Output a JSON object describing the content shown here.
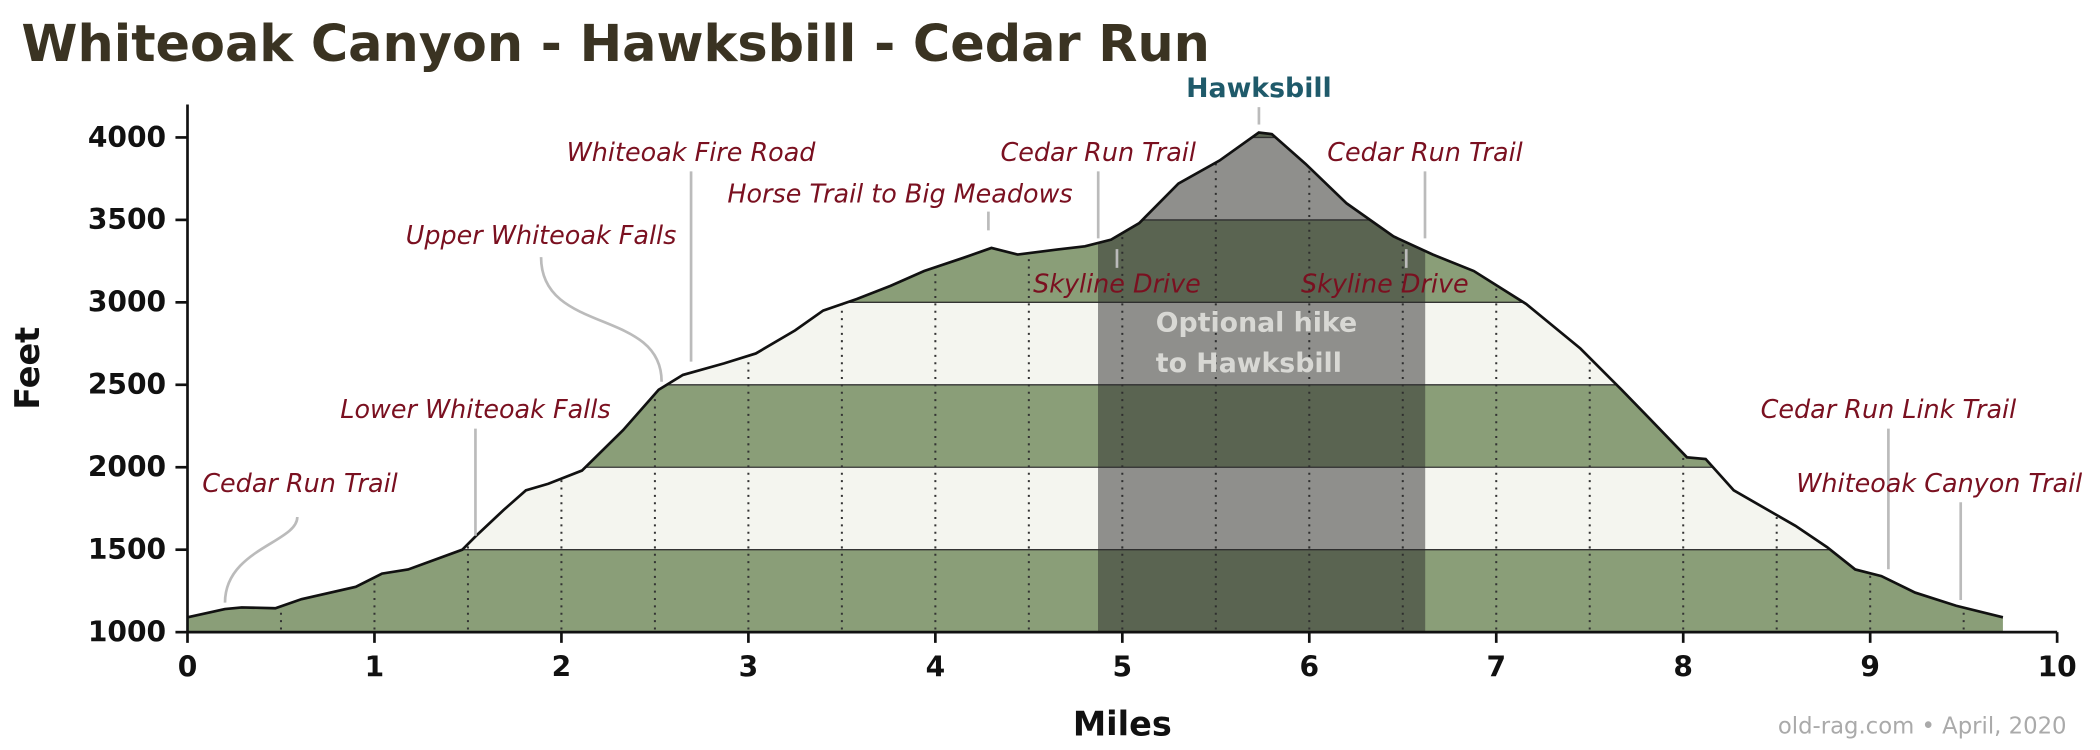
{
  "chart_data": {
    "type": "area",
    "title": "Whiteoak Canyon - Hawksbill - Cedar Run",
    "x_label": "Miles",
    "y_label": "Feet",
    "source": "old-rag.com • April, 2020",
    "xlim": [
      0,
      10
    ],
    "ylim": [
      1000,
      4200
    ],
    "xticks": [
      0,
      1,
      2,
      3,
      4,
      5,
      6,
      7,
      8,
      9,
      10
    ],
    "yticks": [
      1000,
      1500,
      2000,
      2500,
      3000,
      3500,
      4000
    ],
    "band_colors": [
      "#8a9e78",
      "#f4f5ef"
    ],
    "x": [
      0,
      0.2,
      0.29,
      0.47,
      0.61,
      0.9,
      1.04,
      1.18,
      1.47,
      1.54,
      1.69,
      1.81,
      1.93,
      2.11,
      2.33,
      2.52,
      2.65,
      2.87,
      3.04,
      3.25,
      3.4,
      3.58,
      3.76,
      3.94,
      4.15,
      4.3,
      4.44,
      4.65,
      4.8,
      4.94,
      5.09,
      5.3,
      5.52,
      5.73,
      5.8,
      5.98,
      6.2,
      6.45,
      6.66,
      6.88,
      7.16,
      7.45,
      7.67,
      7.88,
      8.02,
      8.12,
      8.27,
      8.6,
      8.77,
      8.92,
      9.06,
      9.24,
      9.46,
      9.71
    ],
    "values": [
      1090,
      1140,
      1150,
      1145,
      1200,
      1275,
      1355,
      1380,
      1500,
      1580,
      1740,
      1860,
      1900,
      1980,
      2225,
      2470,
      2560,
      2630,
      2690,
      2830,
      2950,
      3020,
      3100,
      3190,
      3270,
      3330,
      3290,
      3320,
      3340,
      3380,
      3480,
      3720,
      3860,
      4030,
      4020,
      3840,
      3600,
      3400,
      3290,
      3190,
      2990,
      2720,
      2470,
      2225,
      2060,
      2050,
      1860,
      1645,
      1515,
      1380,
      1340,
      1240,
      1160,
      1090
    ],
    "highlight": {
      "label": [
        "Optional hike",
        "to Hawksbill"
      ],
      "start": 4.87,
      "end": 6.62
    },
    "peak_label": "Hawksbill",
    "annotations": [
      "Cedar Run Trail",
      "Lower Whiteoak Falls",
      "Upper Whiteoak Falls",
      "Whiteoak Fire Road",
      "Horse Trail to Big Meadows",
      "Cedar Run Trail",
      "Cedar Run Trail",
      "Skyline Drive",
      "Skyline Drive",
      "Cedar Run Link Trail",
      "Whiteoak Canyon Trail"
    ]
  }
}
